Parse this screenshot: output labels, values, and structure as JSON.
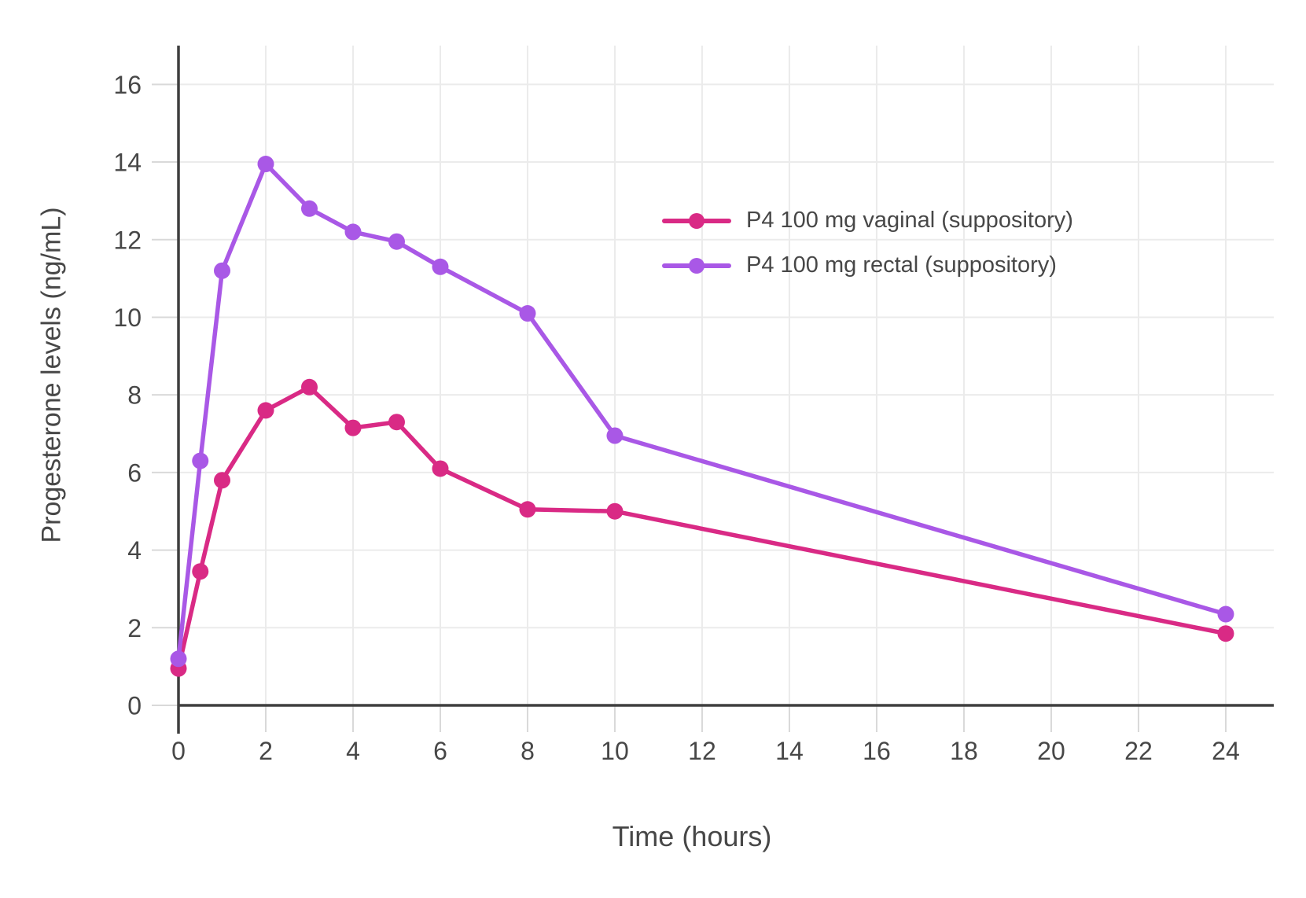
{
  "chart_data": {
    "type": "line",
    "title": "",
    "xlabel": "Time (hours)",
    "ylabel": "Progesterone levels (ng/mL)",
    "x": [
      0,
      0.5,
      1,
      2,
      3,
      4,
      5,
      6,
      8,
      10,
      24
    ],
    "series": [
      {
        "name": "P4 100 mg vaginal (suppository)",
        "color": "#d92a85",
        "marker": "circle",
        "values": [
          0.95,
          3.45,
          5.8,
          7.6,
          8.2,
          7.15,
          7.3,
          6.1,
          5.05,
          5.0,
          1.85
        ]
      },
      {
        "name": "P4 100 mg rectal (suppository)",
        "color": "#a958e6",
        "marker": "circle",
        "values": [
          1.2,
          6.3,
          11.2,
          13.95,
          12.8,
          12.2,
          11.95,
          11.3,
          10.1,
          6.95,
          2.35
        ]
      }
    ],
    "xlim": [
      0,
      25.1
    ],
    "ylim": [
      0,
      17
    ],
    "x_ticks": [
      0,
      2,
      4,
      6,
      8,
      10,
      12,
      14,
      16,
      18,
      20,
      22,
      24
    ],
    "y_ticks": [
      0,
      2,
      4,
      6,
      8,
      10,
      12,
      14,
      16
    ],
    "grid": true,
    "legend_position": "inside-upper-right",
    "colors": {
      "background": "#ffffff",
      "axis_line": "#3f3f3f",
      "tick_mark": "#d9d9d9",
      "gridline": "#ebebeb",
      "text": "#474747"
    }
  }
}
